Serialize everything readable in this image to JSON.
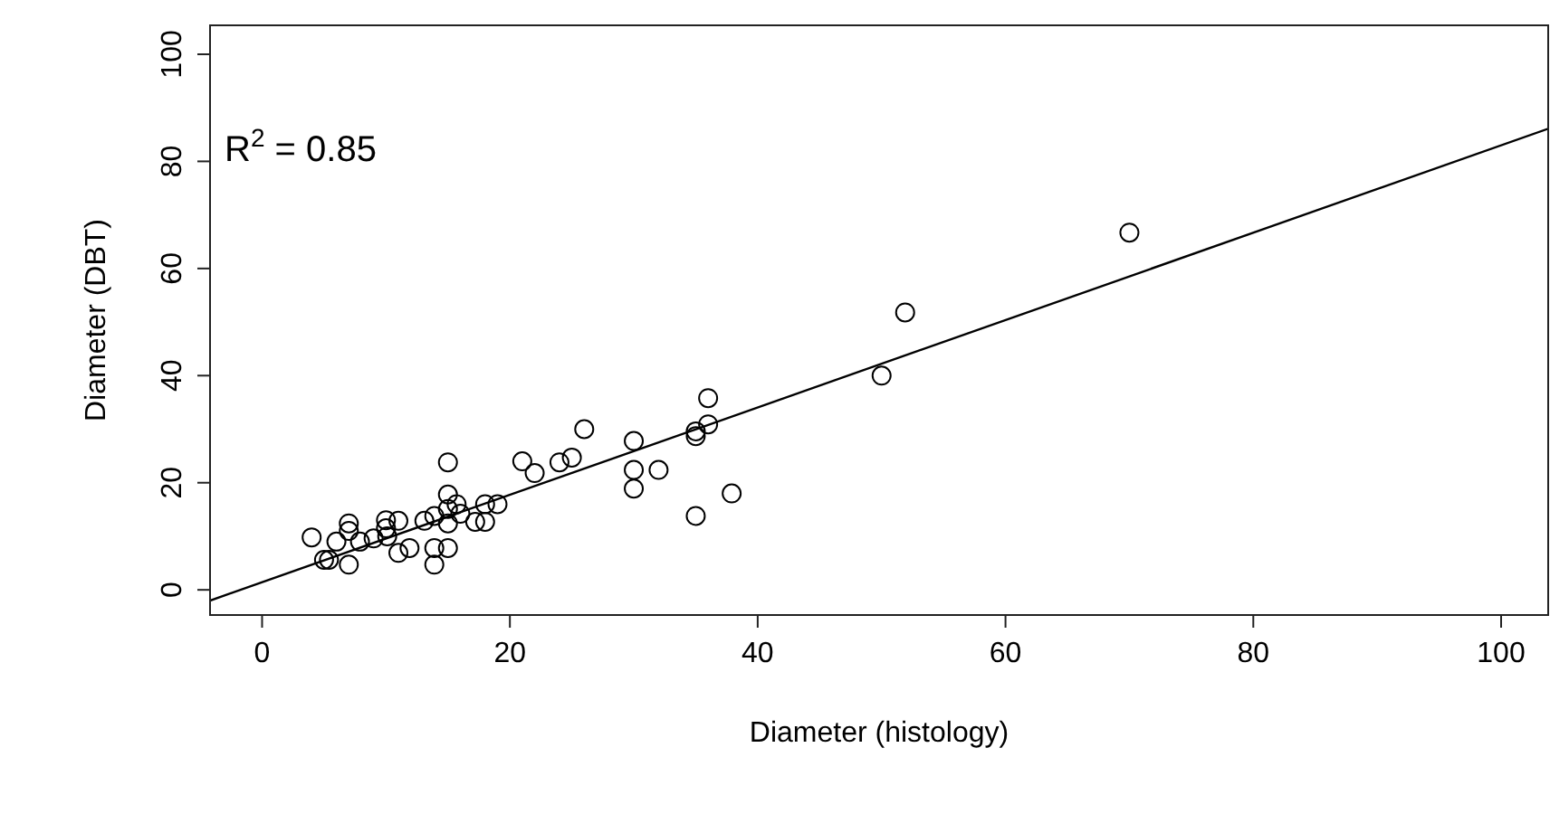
{
  "chart_data": {
    "type": "scatter",
    "xlabel": "Diameter (histology)",
    "ylabel": "Diameter (DBT)",
    "annotations": [
      "R$^{2}$ = 0.85"
    ],
    "xlim": [
      -4.2,
      103.8
    ],
    "ylim": [
      -4.7,
      105.4
    ],
    "xticks": [
      0,
      20,
      40,
      60,
      80,
      100
    ],
    "yticks": [
      0,
      20,
      40,
      60,
      80,
      100
    ],
    "grid": false,
    "marker": "circle",
    "series": [
      {
        "color": "#000000",
        "x": [
          4,
          5,
          5.4,
          6,
          7,
          7,
          7,
          7.9,
          9,
          10,
          10,
          10.1,
          11,
          11,
          11.9,
          13.1,
          13.9,
          13.9,
          13.9,
          15,
          15,
          15,
          15,
          15,
          15.7,
          16,
          17.2,
          18,
          18,
          19,
          21,
          22,
          24,
          25,
          26,
          30,
          30,
          30,
          32,
          35,
          35,
          35,
          36,
          36,
          37.9,
          50,
          51.9,
          70
        ],
        "values": [
          9.8,
          5.6,
          5.6,
          9,
          12.4,
          11,
          4.7,
          9,
          9.6,
          13,
          11.5,
          10,
          12.9,
          6.9,
          7.8,
          12.9,
          13.8,
          7.8,
          4.7,
          23.8,
          17.8,
          15.1,
          12.4,
          7.8,
          16,
          14.2,
          12.7,
          16,
          12.7,
          16,
          24,
          21.8,
          23.8,
          24.7,
          30,
          27.8,
          22.4,
          18.9,
          22.4,
          13.8,
          29.6,
          28.7,
          35.8,
          30.9,
          18,
          40,
          51.8,
          66.7
        ]
      },
      {
        "type": "line",
        "color": "#000000",
        "marker": "none",
        "x": [
          -4.2,
          103.8
        ],
        "values": [
          -2.0,
          86.1
        ]
      }
    ]
  }
}
